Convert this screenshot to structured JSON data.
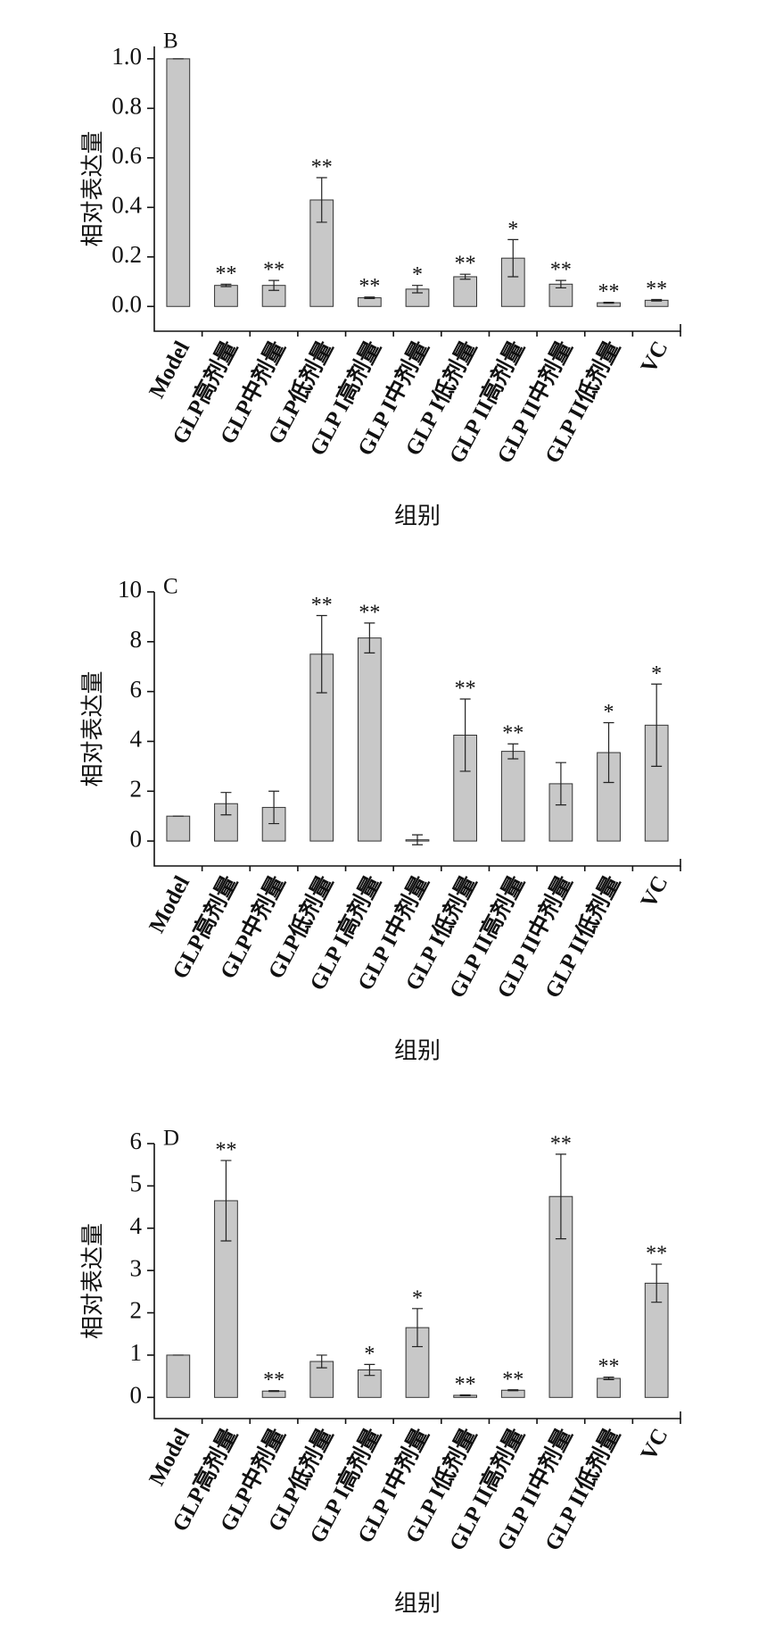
{
  "chart_data": [
    {
      "type": "bar",
      "title": "B",
      "y_label": "相对表达量",
      "x_label": "组别",
      "color": "#c8c8c8",
      "categories": [
        "Model",
        "GLP高剂量",
        "GLP中剂量",
        "GLP低剂量",
        "GLP I高剂量",
        "GLP I中剂量",
        "GLP I低剂量",
        "GLP II高剂量",
        "GLP II中剂量",
        "GLP II低剂量",
        "VC"
      ],
      "values": [
        1.0,
        0.085,
        0.085,
        0.43,
        0.035,
        0.07,
        0.12,
        0.195,
        0.09,
        0.015,
        0.025
      ],
      "errors": [
        0,
        0.005,
        0.02,
        0.09,
        0.003,
        0.015,
        0.01,
        0.075,
        0.015,
        0.002,
        0.003
      ],
      "annotations": [
        null,
        "**",
        "**",
        "**",
        "**",
        "*",
        "**",
        "*",
        "**",
        "**",
        "**"
      ],
      "ylim": [
        -0.1,
        1.05
      ],
      "yticks": [
        {
          "value": 0,
          "label": "0.0"
        },
        0.2,
        0.4,
        0.6,
        0.8,
        {
          "value": 1,
          "label": "1.0"
        }
      ]
    },
    {
      "type": "bar",
      "title": "C",
      "y_label": "相对表达量",
      "x_label": "组别",
      "color": "#c8c8c8",
      "categories": [
        "Model",
        "GLP高剂量",
        "GLP中剂量",
        "GLP低剂量",
        "GLP I高剂量",
        "GLP I中剂量",
        "GLP I低剂量",
        "GLP II高剂量",
        "GLP II中剂量",
        "GLP II低剂量",
        "VC"
      ],
      "values": [
        1.0,
        1.5,
        1.35,
        7.5,
        8.15,
        0.05,
        4.25,
        3.6,
        2.3,
        3.55,
        4.65
      ],
      "errors": [
        0,
        0.45,
        0.65,
        1.55,
        0.6,
        0.2,
        1.45,
        0.3,
        0.85,
        1.2,
        1.65
      ],
      "annotations": [
        null,
        null,
        null,
        "**",
        "**",
        null,
        "**",
        "**",
        null,
        "*",
        "*"
      ],
      "ylim": [
        -1,
        10
      ],
      "yticks": [
        0,
        2,
        4,
        6,
        8,
        10
      ]
    },
    {
      "type": "bar",
      "title": "D",
      "y_label": "相对表达量",
      "x_label": "组别",
      "color": "#c8c8c8",
      "categories": [
        "Model",
        "GLP高剂量",
        "GLP中剂量",
        "GLP低剂量",
        "GLP I高剂量",
        "GLP I中剂量",
        "GLP I低剂量",
        "GLP II高剂量",
        "GLP II中剂量",
        "GLP II低剂量",
        "VC"
      ],
      "values": [
        1.0,
        4.65,
        0.15,
        0.85,
        0.65,
        1.65,
        0.05,
        0.17,
        4.75,
        0.45,
        2.7
      ],
      "errors": [
        0,
        0.95,
        0.01,
        0.15,
        0.13,
        0.45,
        0.01,
        0.01,
        1.0,
        0.03,
        0.45
      ],
      "annotations": [
        null,
        "**",
        "**",
        null,
        "*",
        "*",
        "**",
        "**",
        "**",
        "**",
        "**"
      ],
      "ylim": [
        -0.5,
        6
      ],
      "yticks": [
        0,
        1,
        2,
        3,
        4,
        5,
        6
      ]
    }
  ]
}
